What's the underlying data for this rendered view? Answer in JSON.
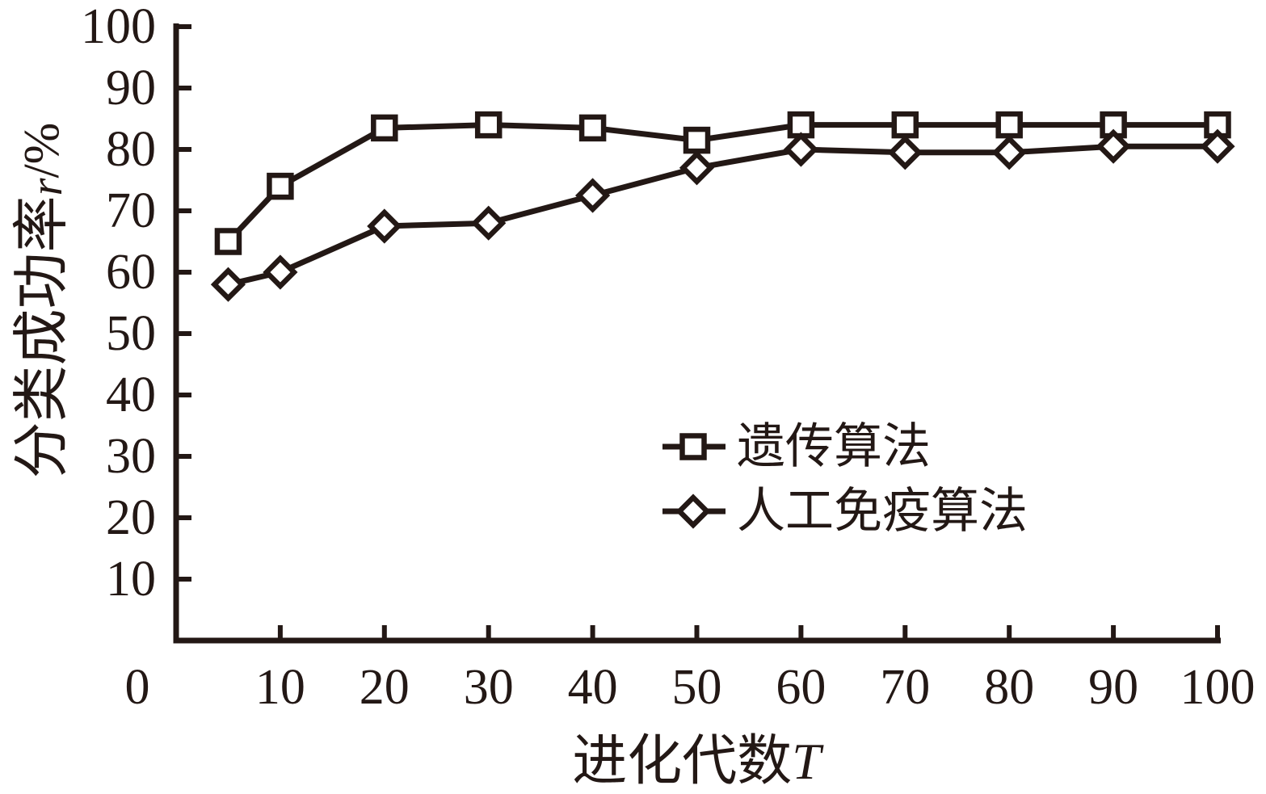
{
  "chart_data": {
    "type": "line",
    "title": "",
    "xlabel": "进化代数T",
    "xlabel_parts": {
      "text": "进化代数",
      "var": "T"
    },
    "ylabel": "分类成功率r/%",
    "ylabel_parts": {
      "text": "分类成功率",
      "var": "r",
      "unit": "/%"
    },
    "xlim": [
      0,
      100
    ],
    "ylim": [
      0,
      100
    ],
    "x_ticks": [
      0,
      10,
      20,
      30,
      40,
      50,
      60,
      70,
      80,
      90,
      100
    ],
    "y_ticks": [
      10,
      20,
      30,
      40,
      50,
      60,
      70,
      80,
      90,
      100
    ],
    "grid": false,
    "x": [
      5,
      10,
      20,
      30,
      40,
      50,
      60,
      70,
      80,
      90,
      100
    ],
    "series": [
      {
        "name": "遗传算法",
        "marker": "square",
        "values": [
          65,
          74,
          83.5,
          84,
          83.5,
          81.5,
          84,
          84,
          84,
          84,
          84
        ]
      },
      {
        "name": "人工免疫算法",
        "marker": "diamond",
        "values": [
          58,
          60,
          67.5,
          68,
          72.5,
          77,
          80,
          79.5,
          79.5,
          80.5,
          80.5
        ]
      }
    ],
    "legend": {
      "position": "inside-center-right",
      "entries": [
        {
          "label": "遗传算法",
          "marker": "square"
        },
        {
          "label": "人工免疫算法",
          "marker": "diamond"
        }
      ]
    }
  },
  "style": {
    "ink_color": "#231815",
    "background_color": "#ffffff"
  }
}
